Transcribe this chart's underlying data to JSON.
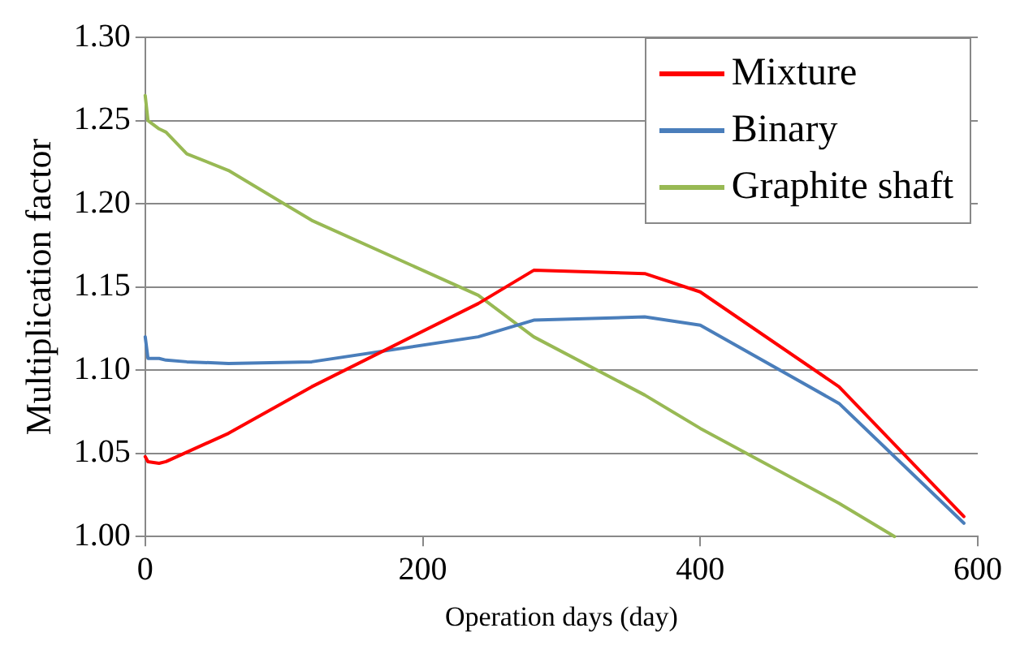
{
  "chart_data": {
    "type": "line",
    "xlabel": "Operation days (day)",
    "ylabel": "Multiplication factor",
    "xlim": [
      0,
      600
    ],
    "xticks": [
      0,
      200,
      400,
      600
    ],
    "ylim": [
      1.0,
      1.3
    ],
    "yticks": [
      {
        "value": 1.0,
        "label": "1.00"
      },
      {
        "value": 1.05,
        "label": "1.05"
      },
      {
        "value": 1.1,
        "label": "1.10"
      },
      {
        "value": 1.15,
        "label": "1.15"
      },
      {
        "value": 1.2,
        "label": "1.20"
      },
      {
        "value": 1.25,
        "label": "1.25"
      },
      {
        "value": 1.3,
        "label": "1.30"
      }
    ],
    "grid": "y",
    "legend": "top right",
    "marker": "none",
    "line_style": "solid",
    "series": [
      {
        "name": "Mixture",
        "color": "#ff0000",
        "x": [
          0,
          2,
          10,
          15,
          60,
          120,
          240,
          280,
          360,
          400,
          500,
          590
        ],
        "values": [
          1.048,
          1.045,
          1.044,
          1.045,
          1.062,
          1.09,
          1.14,
          1.16,
          1.158,
          1.147,
          1.09,
          1.012
        ]
      },
      {
        "name": "Binary",
        "color": "#4a7ebb",
        "x": [
          0,
          2,
          10,
          15,
          30,
          60,
          120,
          240,
          280,
          360,
          400,
          500,
          590
        ],
        "values": [
          1.12,
          1.107,
          1.107,
          1.106,
          1.105,
          1.104,
          1.105,
          1.12,
          1.13,
          1.132,
          1.127,
          1.08,
          1.008
        ]
      },
      {
        "name": "Graphite shaft",
        "color": "#98b954",
        "x": [
          0,
          2,
          10,
          15,
          30,
          60,
          120,
          240,
          280,
          360,
          400,
          500,
          540
        ],
        "values": [
          1.265,
          1.25,
          1.245,
          1.243,
          1.23,
          1.22,
          1.19,
          1.145,
          1.12,
          1.085,
          1.065,
          1.02,
          1.0
        ]
      }
    ]
  }
}
